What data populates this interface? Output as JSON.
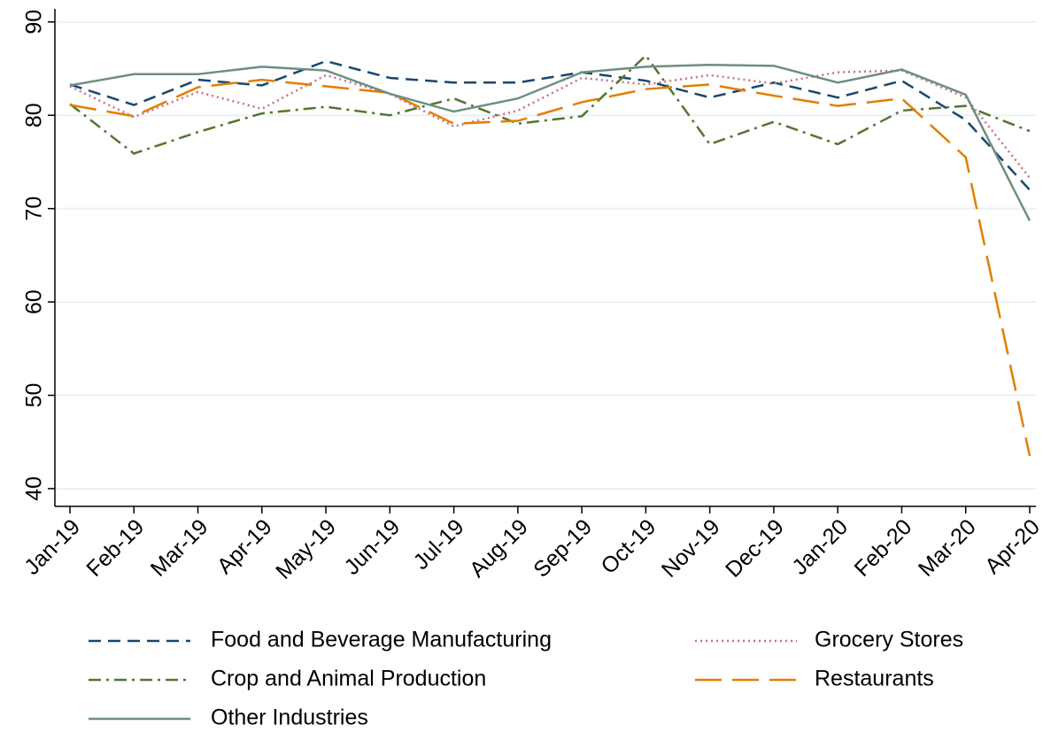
{
  "chart_data": {
    "type": "line",
    "categories": [
      "Jan-19",
      "Feb-19",
      "Mar-19",
      "Apr-19",
      "May-19",
      "Jun-19",
      "Jul-19",
      "Aug-19",
      "Sep-19",
      "Oct-19",
      "Nov-19",
      "Dec-19",
      "Jan-20",
      "Feb-20",
      "Mar-20",
      "Apr-20"
    ],
    "series": [
      {
        "name": "Food and Beverage Manufacturing",
        "color": "#1a476f",
        "dash": "dash",
        "values": [
          83.3,
          81.1,
          83.8,
          83.2,
          85.8,
          84.0,
          83.5,
          83.5,
          84.6,
          83.7,
          81.9,
          83.5,
          81.9,
          83.7,
          79.5,
          72.0
        ]
      },
      {
        "name": "Grocery Stores",
        "color": "#c4708a",
        "dash": "dot",
        "values": [
          83.1,
          79.8,
          82.5,
          80.7,
          84.3,
          82.3,
          78.8,
          80.5,
          84.0,
          83.3,
          84.3,
          83.4,
          84.6,
          84.8,
          81.9,
          73.3
        ]
      },
      {
        "name": "Crop and Animal Production",
        "color": "#55752f",
        "dash": "dash-dot",
        "values": [
          81.2,
          75.9,
          78.2,
          80.2,
          80.9,
          80.0,
          81.8,
          79.1,
          79.9,
          86.4,
          76.9,
          79.3,
          76.9,
          80.5,
          81.0,
          78.3
        ]
      },
      {
        "name": "Restaurants",
        "color": "#e37e00",
        "dash": "longdash",
        "values": [
          81.1,
          79.9,
          83.0,
          83.8,
          83.1,
          82.4,
          79.1,
          79.4,
          81.4,
          82.8,
          83.3,
          82.1,
          81.0,
          81.8,
          75.5,
          43.5
        ]
      },
      {
        "name": "Other Industries",
        "color": "#6e8e84",
        "dash": "solid",
        "values": [
          83.2,
          84.4,
          84.4,
          85.2,
          84.8,
          82.3,
          80.4,
          81.8,
          84.6,
          85.2,
          85.4,
          85.3,
          83.5,
          84.9,
          82.2,
          68.7
        ]
      }
    ],
    "ylim": [
      38.1,
      91.4
    ],
    "yticks": [
      40,
      50,
      60,
      70,
      80,
      90
    ],
    "grid": true,
    "legend": "bottom"
  }
}
